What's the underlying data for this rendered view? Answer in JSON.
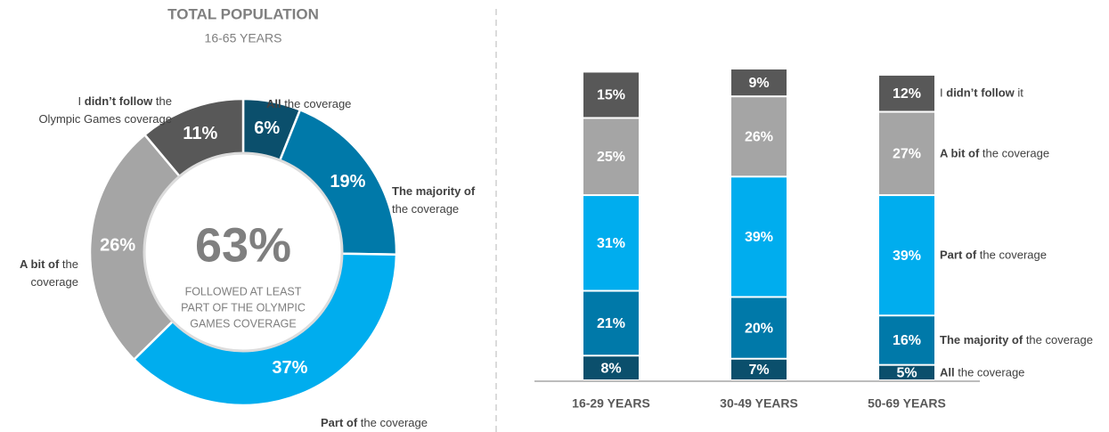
{
  "chart_data": [
    {
      "type": "pie",
      "title": "TOTAL POPULATION",
      "subtitle": "16-65 YEARS",
      "center_label": "63%",
      "center_text": [
        "FOLLOWED AT LEAST",
        "PART OF THE OLYMPIC",
        "GAMES COVERAGE"
      ],
      "categories": [
        [
          [
            {
              "text": "All",
              "bold": true
            },
            {
              "text": "the coverage",
              "bold": false
            }
          ]
        ],
        [
          [
            {
              "text": "The majority of",
              "bold": true
            }
          ],
          [
            {
              "text": "the coverage",
              "bold": false
            }
          ]
        ],
        [
          [
            {
              "text": "Part of",
              "bold": true
            },
            {
              "text": "the coverage",
              "bold": false
            }
          ]
        ],
        [
          [
            {
              "text": "A bit of",
              "bold": true
            },
            {
              "text": "the",
              "bold": false
            }
          ],
          [
            {
              "text": "coverage",
              "bold": false
            }
          ]
        ],
        [
          [
            {
              "text": "I",
              "bold": false
            },
            {
              "text": "didn’t follow",
              "bold": true
            },
            {
              "text": "the",
              "bold": false
            }
          ],
          [
            {
              "text": "Olympic Games coverage",
              "bold": false
            }
          ]
        ]
      ],
      "values": [
        6,
        19,
        37,
        26,
        11
      ],
      "value_labels": [
        "6%",
        "19%",
        "37%",
        "26%",
        "11%"
      ],
      "colors": [
        "#0b4f6c",
        "#0079a9",
        "#00adee",
        "#a5a5a5",
        "#585858"
      ]
    },
    {
      "type": "stacked_bar",
      "categories": [
        "16-29 YEARS",
        "30-49 YEARS",
        "50-69 YEARS"
      ],
      "ylim": [
        0,
        101
      ],
      "series": [
        {
          "name": [
            {
              "text": "All",
              "bold": true
            },
            {
              "text": "the coverage",
              "bold": false
            }
          ],
          "color": "#0b4f6c",
          "values": [
            8,
            7,
            5
          ],
          "value_labels": [
            "8%",
            "7%",
            "5%"
          ]
        },
        {
          "name": [
            {
              "text": "The majority of",
              "bold": true
            },
            {
              "text": "the coverage",
              "bold": false
            }
          ],
          "color": "#0079a9",
          "values": [
            21,
            20,
            16
          ],
          "value_labels": [
            "21%",
            "20%",
            "16%"
          ]
        },
        {
          "name": [
            {
              "text": "Part of",
              "bold": true
            },
            {
              "text": "the coverage",
              "bold": false
            }
          ],
          "color": "#00adee",
          "values": [
            31,
            39,
            39
          ],
          "value_labels": [
            "31%",
            "39%",
            "39%"
          ]
        },
        {
          "name": [
            {
              "text": "A bit of",
              "bold": true
            },
            {
              "text": "the coverage",
              "bold": false
            }
          ],
          "color": "#a5a5a5",
          "values": [
            25,
            26,
            27
          ],
          "value_labels": [
            "25%",
            "26%",
            "27%"
          ]
        },
        {
          "name": [
            {
              "text": "I",
              "bold": false
            },
            {
              "text": "didn’t follow",
              "bold": true
            },
            {
              "text": "it",
              "bold": false
            }
          ],
          "color": "#585858",
          "values": [
            15,
            9,
            12
          ],
          "value_labels": [
            "15%",
            "9%",
            "12%"
          ]
        }
      ]
    }
  ]
}
